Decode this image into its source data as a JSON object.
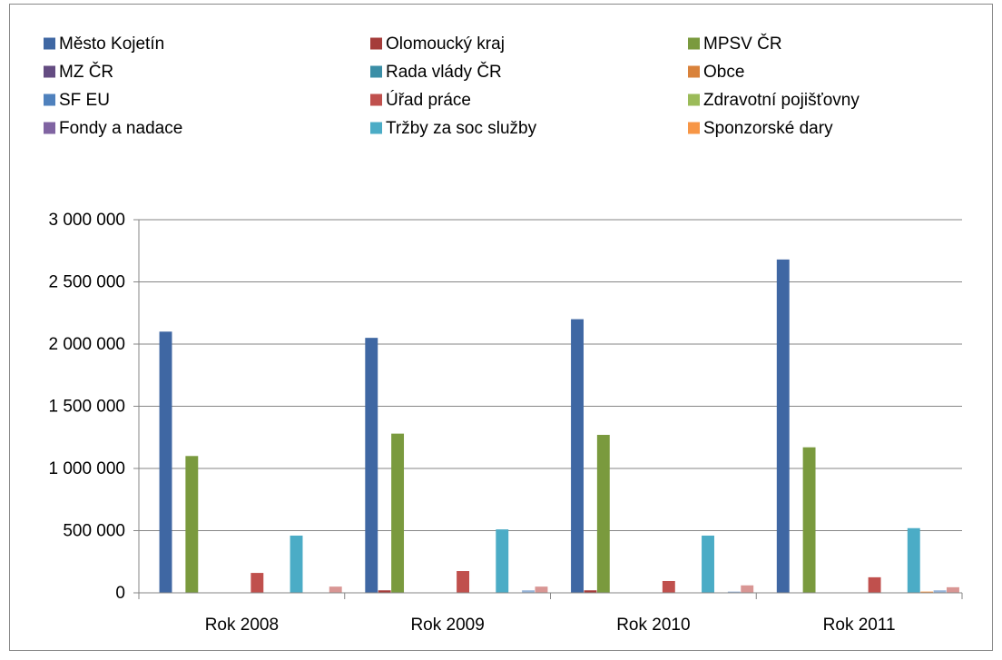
{
  "chart_data": {
    "type": "bar",
    "categories": [
      "Rok 2008",
      "Rok 2009",
      "Rok 2010",
      "Rok 2011"
    ],
    "series": [
      {
        "name": "Město Kojetín",
        "color": "#3f67a3",
        "values": [
          2100000,
          2050000,
          2200000,
          2680000
        ]
      },
      {
        "name": "Olomoucký kraj",
        "color": "#a53c3a",
        "values": [
          0,
          20000,
          20000,
          0
        ]
      },
      {
        "name": "MPSV ČR",
        "color": "#7a9a3e",
        "values": [
          1100000,
          1280000,
          1270000,
          1170000
        ]
      },
      {
        "name": "MZ ČR",
        "color": "#644c82",
        "values": [
          0,
          0,
          0,
          0
        ]
      },
      {
        "name": "Rada vlády ČR",
        "color": "#3a8ea6",
        "values": [
          0,
          0,
          0,
          0
        ]
      },
      {
        "name": "Obce",
        "color": "#d9823b",
        "values": [
          0,
          0,
          0,
          0
        ]
      },
      {
        "name": "SF EU",
        "color": "#4f81bd",
        "values": [
          0,
          0,
          0,
          0
        ]
      },
      {
        "name": "Úřad práce",
        "color": "#c0504d",
        "values": [
          160000,
          175000,
          95000,
          125000
        ]
      },
      {
        "name": "Zdravotní pojišťovny",
        "color": "#9bbb59",
        "values": [
          0,
          0,
          0,
          0
        ]
      },
      {
        "name": "Fondy a nadace",
        "color": "#8064a2",
        "values": [
          0,
          0,
          0,
          0
        ]
      },
      {
        "name": "Tržby za soc služby",
        "color": "#4bacc6",
        "values": [
          460000,
          510000,
          460000,
          520000
        ]
      },
      {
        "name": "Sponzorské dary",
        "color": "#f79646",
        "values": [
          0,
          0,
          0,
          10000
        ]
      },
      {
        "name": null,
        "color": "#95b3d7",
        "values": [
          0,
          20000,
          10000,
          20000
        ]
      },
      {
        "name": null,
        "color": "#d99694",
        "values": [
          50000,
          50000,
          60000,
          45000
        ]
      }
    ],
    "ylim": [
      0,
      3000000
    ],
    "yticks": [
      {
        "value": 0,
        "label": "0"
      },
      {
        "value": 500000,
        "label": "500 000"
      },
      {
        "value": 1000000,
        "label": "1 000 000"
      },
      {
        "value": 1500000,
        "label": "1 500 000"
      },
      {
        "value": 2000000,
        "label": "2 000 000"
      },
      {
        "value": 2500000,
        "label": "2 500 000"
      },
      {
        "value": 3000000,
        "label": "3 000 000"
      }
    ],
    "grid": true,
    "legend": "top"
  }
}
